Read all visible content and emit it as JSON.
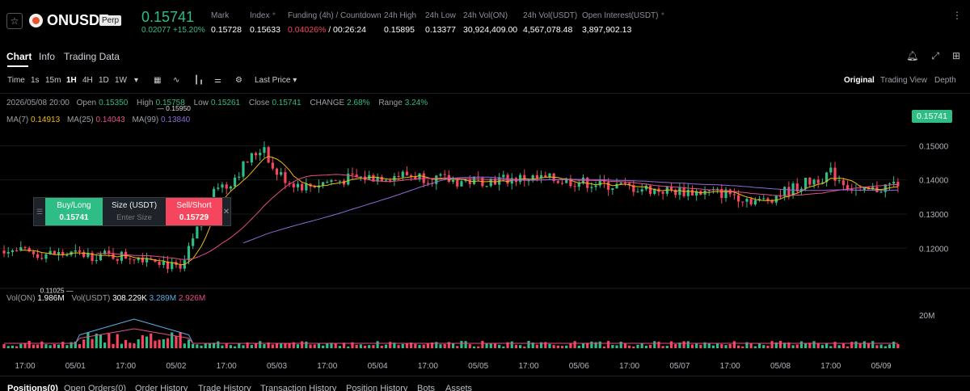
{
  "ticker": {
    "symbol": "ONUSDT",
    "badge": "Perp",
    "last_price": "0.15741",
    "change_abs": "0.02077",
    "change_pct": "+15.20%",
    "stats": [
      {
        "label": "Mark",
        "value": "0.15728"
      },
      {
        "label": "Index ⁺",
        "value": "0.15633"
      },
      {
        "label": "Funding (4h) / Countdown",
        "value_red": "0.04026%",
        "value": " / 00:26:24"
      },
      {
        "label": "24h High",
        "value": "0.15895"
      },
      {
        "label": "24h Low",
        "value": "0.13377"
      },
      {
        "label": "24h Vol(ON)",
        "value": "30,924,409.00"
      },
      {
        "label": "24h Vol(USDT)",
        "value": "4,567,078.48"
      },
      {
        "label": "Open Interest(USDT) ⁺",
        "value": "3,897,902.13"
      }
    ]
  },
  "tabs": [
    "Chart",
    "Info",
    "Trading Data"
  ],
  "toolbar": {
    "time_label": "Time",
    "intervals": [
      "1s",
      "15m",
      "1H",
      "4H",
      "1D",
      "1W"
    ],
    "active_interval": "1H",
    "price_type": "Last Price ▾",
    "views": [
      "Original",
      "Trading View",
      "Depth"
    ],
    "active_view": "Original"
  },
  "ohlc": {
    "date": "2026/05/08 20:00",
    "open_label": "Open",
    "open": "0.15350",
    "high_label": "High",
    "high": "0.15758",
    "low_label": "Low",
    "low": "0.15261",
    "close_label": "Close",
    "close": "0.15741",
    "change_label": "CHANGE",
    "change": "2.68%",
    "range_label": "Range",
    "range": "3.24%"
  },
  "ma": {
    "ma7_label": "MA(7)",
    "ma7": "0.14913",
    "ma25_label": "MA(25)",
    "ma25": "0.14043",
    "ma99_label": "MA(99)",
    "ma99": "0.13840"
  },
  "volume": {
    "vol_on_label": "Vol(ON)",
    "vol_on": "1.986M",
    "vol_usdt_label": "Vol(USDT)",
    "vol_usdt": "308.229K",
    "ma_a": "3.289M",
    "ma_b": "2.926M",
    "axis_label": "20M"
  },
  "order_widget": {
    "buy_label": "Buy/Long",
    "buy_price": "0.15741",
    "size_label": "Size (USDT)",
    "size_placeholder": "Enter Size",
    "sell_label": "Sell/Short",
    "sell_price": "0.15729"
  },
  "colors": {
    "up": "#2ebd85",
    "down": "#f6465d",
    "ma7": "#f0b90b",
    "ma25": "#e74c8c",
    "ma99": "#8e6bd6",
    "vol_ma_a": "#5dade2",
    "vol_ma_b": "#e74c8c"
  },
  "chart_data": {
    "type": "candlestick",
    "interval": "1H",
    "y_axis_ticks": [
      "0.15000",
      "0.14000",
      "0.13000",
      "0.12000"
    ],
    "ylim": [
      0.108,
      0.1605
    ],
    "x_axis_ticks": [
      "17:00",
      "05/01",
      "17:00",
      "05/02",
      "17:00",
      "05/03",
      "17:00",
      "05/04",
      "17:00",
      "05/05",
      "17:00",
      "05/06",
      "17:00",
      "05/07",
      "17:00",
      "05/08",
      "17:00",
      "05/09"
    ],
    "annotations": [
      {
        "label": "0.11025",
        "type": "low"
      },
      {
        "label": "0.15950",
        "type": "high"
      }
    ],
    "last_price_label": "0.15741",
    "series": [
      {
        "name": "MA(7)",
        "last": 0.14913
      },
      {
        "name": "MA(25)",
        "last": 0.14043
      },
      {
        "name": "MA(99)",
        "last": 0.1384
      }
    ],
    "close_path": [
      {
        "t": "04/30 10:00",
        "close": 0.1205
      },
      {
        "t": "04/30 17:00",
        "close": 0.1185
      },
      {
        "t": "05/01 00:00",
        "close": 0.1175
      },
      {
        "t": "05/01 06:00",
        "close": 0.113
      },
      {
        "t": "05/01 10:00",
        "close": 0.125
      },
      {
        "t": "05/01 14:00",
        "close": 0.139
      },
      {
        "t": "05/01 17:00",
        "close": 0.138
      },
      {
        "t": "05/01 22:00",
        "close": 0.1455
      },
      {
        "t": "05/02 02:00",
        "close": 0.15
      },
      {
        "t": "05/02 04:00",
        "close": 0.143
      },
      {
        "t": "05/02 08:00",
        "close": 0.1395
      },
      {
        "t": "05/02 12:00",
        "close": 0.138
      },
      {
        "t": "05/02 17:00",
        "close": 0.1395
      },
      {
        "t": "05/03 00:00",
        "close": 0.1405
      },
      {
        "t": "05/03 12:00",
        "close": 0.1415
      },
      {
        "t": "05/04 00:00",
        "close": 0.1395
      },
      {
        "t": "05/04 17:00",
        "close": 0.1405
      },
      {
        "t": "05/05 00:00",
        "close": 0.14
      },
      {
        "t": "05/05 12:00",
        "close": 0.1385
      },
      {
        "t": "05/06 00:00",
        "close": 0.137
      },
      {
        "t": "05/06 17:00",
        "close": 0.136
      },
      {
        "t": "05/07 00:00",
        "close": 0.1335
      },
      {
        "t": "05/07 17:00",
        "close": 0.142
      },
      {
        "t": "05/08 00:00",
        "close": 0.136
      },
      {
        "t": "05/08 12:00",
        "close": 0.14
      },
      {
        "t": "05/08 17:00",
        "close": 0.148
      },
      {
        "t": "05/08 20:00",
        "close": 0.15741
      }
    ]
  },
  "bottom_tabs": [
    "Positions(0)",
    "Open Orders(0)",
    "Order History",
    "Trade History",
    "Transaction History",
    "Position History",
    "Bots",
    "Assets"
  ]
}
